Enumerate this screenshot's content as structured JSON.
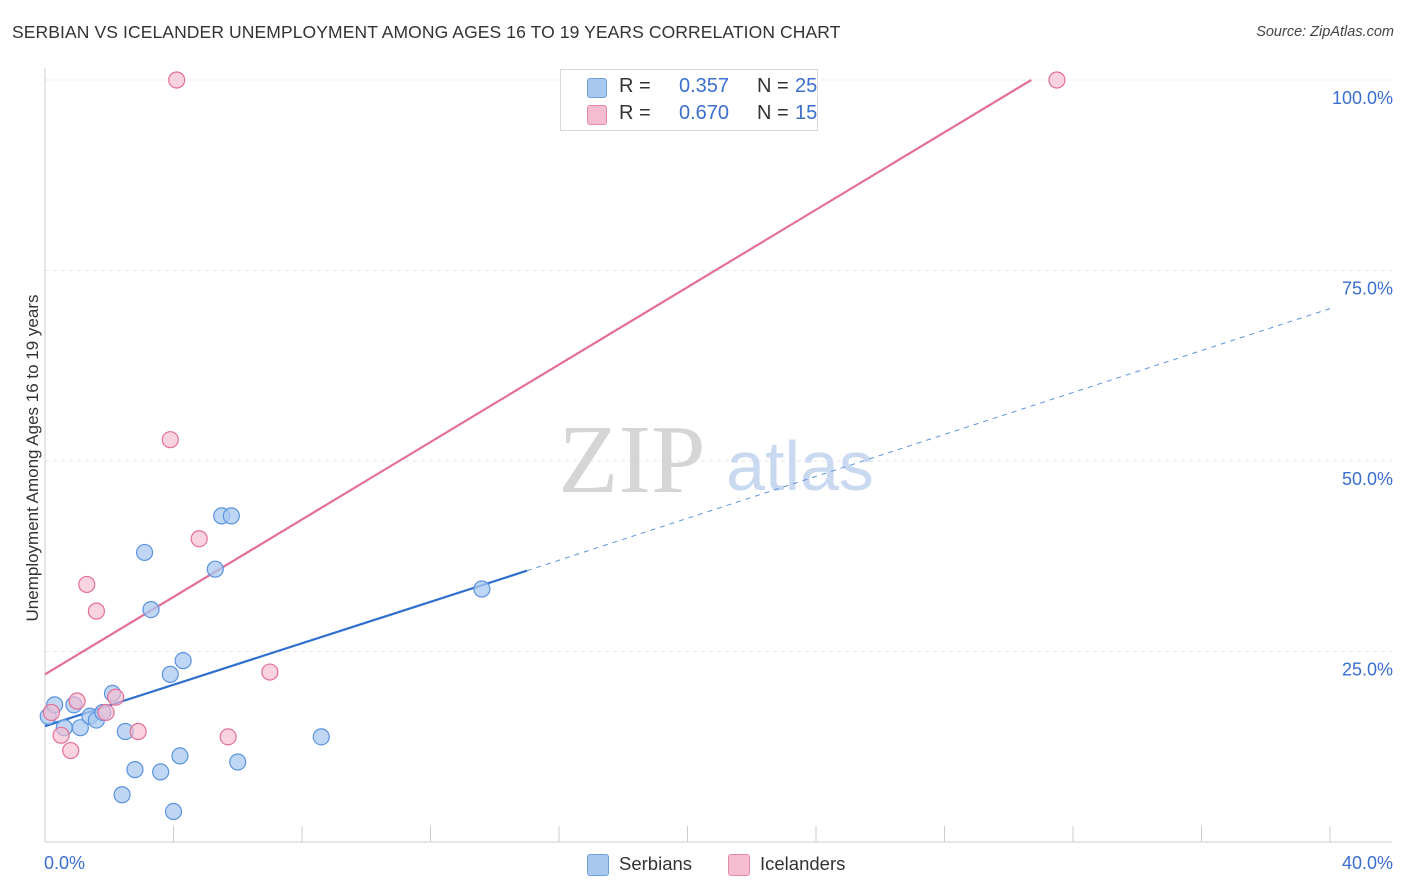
{
  "title": "SERBIAN VS ICELANDER UNEMPLOYMENT AMONG AGES 16 TO 19 YEARS CORRELATION CHART",
  "source": "Source: ZipAtlas.com",
  "watermark": {
    "zip": "ZIP",
    "atlas": "atlas"
  },
  "legend": {
    "r_label": "R =",
    "n_label": "N =",
    "series": [
      {
        "name": "Serbians",
        "r": "0.357",
        "n": "25",
        "color": "#a9c8f0",
        "border": "#6f9fde"
      },
      {
        "name": "Icelanders",
        "r": "0.670",
        "n": "15",
        "color": "#f6bcd0",
        "border": "#e58aa8"
      }
    ]
  },
  "chart_data": {
    "type": "scatter",
    "title": "SERBIAN VS ICELANDER UNEMPLOYMENT AMONG AGES 16 TO 19 YEARS CORRELATION CHART",
    "xlabel": "",
    "ylabel": "Unemployment Among Ages 16 to 19 years",
    "xlim": [
      0,
      40
    ],
    "ylim": [
      0,
      100
    ],
    "x_tick_labels": [
      "0.0%",
      "40.0%"
    ],
    "y_tick_labels": [
      "25.0%",
      "50.0%",
      "75.0%",
      "100.0%"
    ],
    "y_ticks": [
      25,
      50,
      75,
      100
    ],
    "grid": true,
    "series": [
      {
        "name": "Serbians",
        "color": "#5b93de",
        "fill": "#a9c8f0",
        "points": [
          [
            0.1,
            16.5
          ],
          [
            0.3,
            18.0
          ],
          [
            0.6,
            15.0
          ],
          [
            0.9,
            18.0
          ],
          [
            1.1,
            15.0
          ],
          [
            1.4,
            16.5
          ],
          [
            1.6,
            16.0
          ],
          [
            1.8,
            17.0
          ],
          [
            2.1,
            19.5
          ],
          [
            2.4,
            6.2
          ],
          [
            2.5,
            14.5
          ],
          [
            2.8,
            9.5
          ],
          [
            3.1,
            38.0
          ],
          [
            3.3,
            30.5
          ],
          [
            3.6,
            9.2
          ],
          [
            3.9,
            22.0
          ],
          [
            4.0,
            4.0
          ],
          [
            4.2,
            11.3
          ],
          [
            4.3,
            23.8
          ],
          [
            5.3,
            35.8
          ],
          [
            5.5,
            42.8
          ],
          [
            5.8,
            42.8
          ],
          [
            6.0,
            10.5
          ],
          [
            8.6,
            13.8
          ],
          [
            13.6,
            33.2
          ]
        ],
        "trend": {
          "x": [
            0,
            15
          ],
          "y": [
            15.2,
            35.6
          ],
          "dashed_to": [
            40,
            70.0
          ]
        }
      },
      {
        "name": "Icelanders",
        "color": "#e46f97",
        "fill": "#f6bcd0",
        "points": [
          [
            0.2,
            17.0
          ],
          [
            0.5,
            14.0
          ],
          [
            0.8,
            12.0
          ],
          [
            1.0,
            18.5
          ],
          [
            1.3,
            33.8
          ],
          [
            1.6,
            30.3
          ],
          [
            1.9,
            17.0
          ],
          [
            2.2,
            19.0
          ],
          [
            2.9,
            14.5
          ],
          [
            3.9,
            52.8
          ],
          [
            4.1,
            100.0
          ],
          [
            4.8,
            39.8
          ],
          [
            5.7,
            13.8
          ],
          [
            7.0,
            22.3
          ],
          [
            31.5,
            100.0
          ]
        ],
        "trend": {
          "x": [
            0,
            30.7
          ],
          "y": [
            22.0,
            100.0
          ]
        }
      }
    ]
  }
}
